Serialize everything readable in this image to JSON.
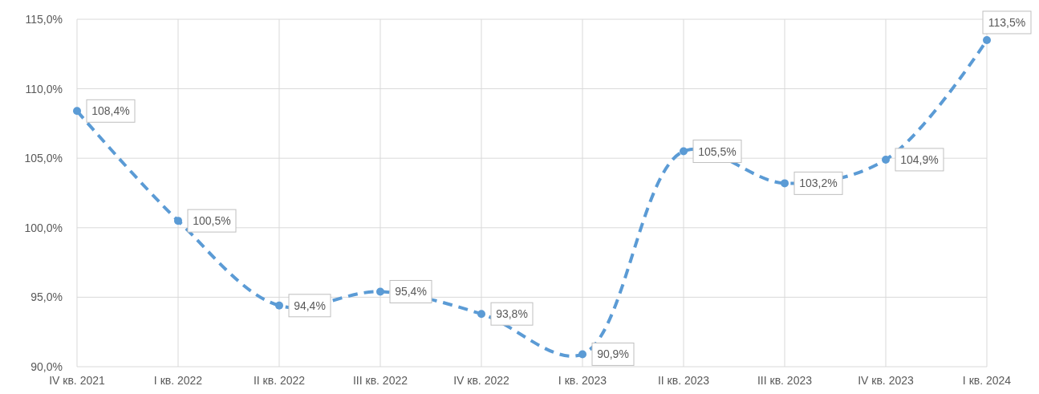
{
  "chart_data": {
    "type": "line",
    "categories": [
      "IV кв. 2021",
      "I кв. 2022",
      "II кв. 2022",
      "III кв. 2022",
      "IV кв. 2022",
      "I кв. 2023",
      "II кв. 2023",
      "III кв. 2023",
      "IV кв. 2023",
      "I кв. 2024"
    ],
    "series": [
      {
        "color": "#5b9bd5",
        "values": [
          108.4,
          100.5,
          94.4,
          95.4,
          93.8,
          90.9,
          105.5,
          103.2,
          104.9,
          113.5
        ],
        "value_labels": [
          "108,4%",
          "100,5%",
          "94,4%",
          "95,4%",
          "93,8%",
          "90,9%",
          "105,5%",
          "103,2%",
          "104,9%",
          "113,5%"
        ]
      }
    ],
    "ylim": [
      90,
      115
    ],
    "yticks": [
      {
        "value": 90,
        "label": "90,0%"
      },
      {
        "value": 95,
        "label": "95,0%"
      },
      {
        "value": 100,
        "label": "100,0%"
      },
      {
        "value": 105,
        "label": "105,0%"
      },
      {
        "value": 110,
        "label": "110,0%"
      },
      {
        "value": 115,
        "label": "115,0%"
      }
    ],
    "grid": true,
    "marker": "circle",
    "line_style": "dashed"
  }
}
